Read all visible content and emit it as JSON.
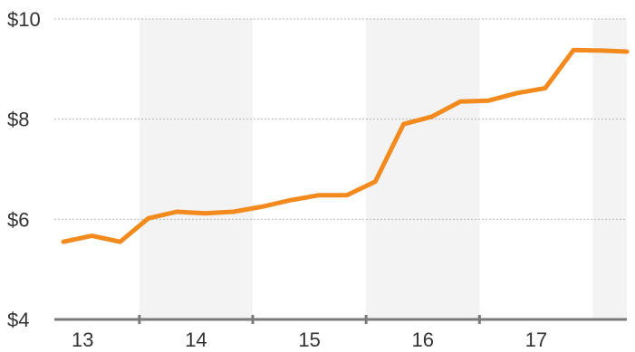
{
  "chart_data": {
    "type": "line",
    "title": "",
    "xlabel": "",
    "ylabel": "",
    "x_tick_labels": [
      "13",
      "14",
      "15",
      "16",
      "17"
    ],
    "y_tick_labels": [
      "$4",
      "$6",
      "$8",
      "$10"
    ],
    "y_ticks": [
      4,
      6,
      8,
      10
    ],
    "ylim": [
      4,
      10
    ],
    "xlim": [
      2012.75,
      2017.8
    ],
    "grid": true,
    "legend": "none",
    "series": [
      {
        "color": "#f28a1e",
        "x": [
          2012.83,
          2013.08,
          2013.33,
          2013.58,
          2013.83,
          2014.08,
          2014.33,
          2014.58,
          2014.83,
          2015.08,
          2015.33,
          2015.58,
          2015.83,
          2016.08,
          2016.33,
          2016.58,
          2016.83,
          2017.08,
          2017.33,
          2017.58,
          2017.8
        ],
        "values": [
          5.55,
          5.67,
          5.55,
          6.02,
          6.15,
          6.12,
          6.15,
          6.25,
          6.38,
          6.48,
          6.48,
          6.75,
          7.9,
          8.05,
          8.35,
          8.37,
          8.52,
          8.62,
          9.38,
          9.37,
          9.35
        ]
      }
    ],
    "colors": {
      "line": "#f28a1e",
      "band": "#f3f3f3",
      "axis": "#7a7a7a",
      "grid": "#b5b5b5",
      "text": "#333333"
    }
  }
}
